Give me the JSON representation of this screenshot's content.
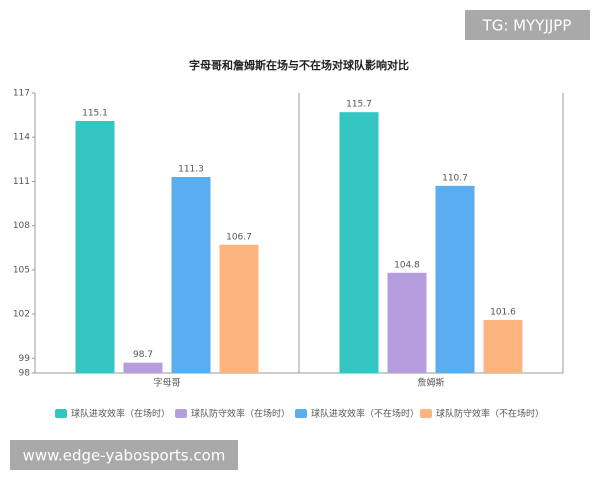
{
  "chart_data": {
    "type": "bar",
    "title": "字母哥和詹姆斯在场与不在场对球队影响对比",
    "categories": [
      "字母哥",
      "詹姆斯"
    ],
    "series": [
      {
        "name": "球队进攻效率（在场时）",
        "color": "#33c6c3",
        "values": [
          115.1,
          115.7
        ]
      },
      {
        "name": "球队防守效率（在场时）",
        "color": "#b69ddd",
        "values": [
          98.7,
          104.8
        ]
      },
      {
        "name": "球队进攻效率（不在场时）",
        "color": "#5aadee",
        "values": [
          111.3,
          110.7
        ]
      },
      {
        "name": "球队防守效率（不在场时）",
        "color": "#fdb47e",
        "values": [
          106.7,
          101.6
        ]
      }
    ],
    "ylim": [
      98,
      117
    ],
    "yticks": [
      98,
      99,
      102,
      105,
      108,
      111,
      114,
      117
    ],
    "grid": false
  },
  "watermarks": [
    "TG: MYYJJPP",
    "www.edge-yabosports.com"
  ]
}
